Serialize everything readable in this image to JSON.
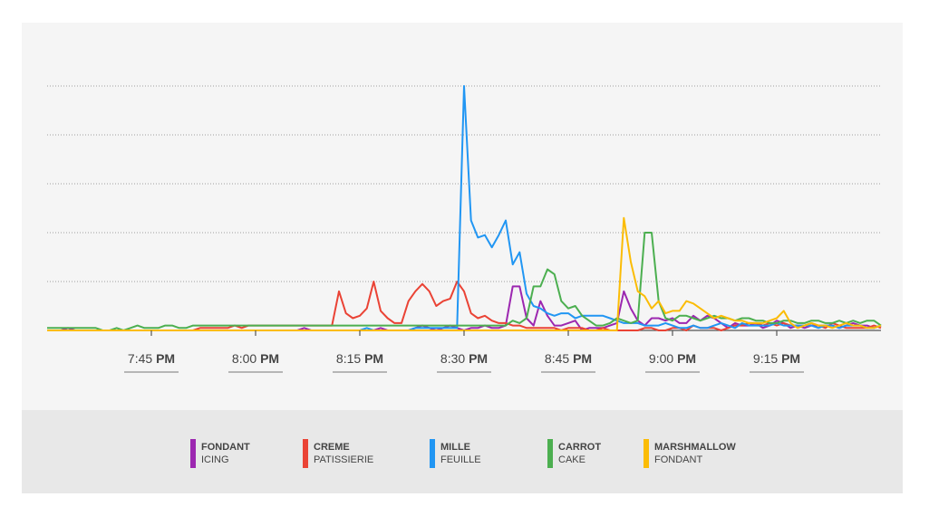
{
  "chart_data": {
    "type": "line",
    "title": "",
    "xlabel": "",
    "ylabel": "",
    "grid": true,
    "y_gridlines": 5,
    "ylim": [
      0,
      100
    ],
    "x_ticks": [
      {
        "time": "7:45",
        "ampm": "PM"
      },
      {
        "time": "8:00",
        "ampm": "PM"
      },
      {
        "time": "8:15",
        "ampm": "PM"
      },
      {
        "time": "8:30",
        "ampm": "PM"
      },
      {
        "time": "8:45",
        "ampm": "PM"
      },
      {
        "time": "9:00",
        "ampm": "PM"
      },
      {
        "time": "9:15",
        "ampm": "PM"
      }
    ],
    "x_start_minutes": 1170,
    "x_end_minutes": 1290,
    "step_minutes": 1,
    "series": [
      {
        "name": "FONDANT",
        "sub": "ICING",
        "color": "#9C27B0",
        "values": [
          0,
          0,
          0,
          1,
          0,
          0,
          0,
          0,
          0,
          0,
          0,
          0,
          0,
          0,
          0,
          0,
          0,
          0,
          0,
          0,
          0,
          0,
          0,
          0,
          0,
          0,
          0,
          0,
          0,
          0,
          0,
          0,
          0,
          0,
          0,
          0,
          0,
          1,
          0,
          0,
          0,
          0,
          0,
          0,
          0,
          0,
          0,
          0,
          1,
          0,
          0,
          0,
          0,
          1,
          2,
          1,
          0,
          1,
          2,
          1,
          0,
          1,
          1,
          2,
          1,
          1,
          2,
          18,
          18,
          5,
          2,
          12,
          6,
          2,
          2,
          3,
          4,
          0,
          1,
          1,
          1,
          2,
          3,
          16,
          9,
          4,
          2,
          5,
          5,
          4,
          5,
          3,
          3,
          6,
          4,
          6,
          5,
          3,
          1,
          3,
          2,
          2,
          3,
          1,
          2,
          4,
          3,
          1,
          2,
          1,
          2,
          2,
          2,
          2,
          1,
          2,
          3,
          2,
          2,
          1,
          2
        ]
      },
      {
        "name": "CREME",
        "sub": "PATISSIERIE",
        "color": "#EA4335",
        "values": [
          0,
          0,
          0,
          0,
          0,
          0,
          0,
          0,
          0,
          0,
          0,
          0,
          0,
          0,
          0,
          0,
          0,
          0,
          0,
          0,
          0,
          0,
          1,
          1,
          1,
          1,
          1,
          2,
          1,
          2,
          2,
          2,
          2,
          2,
          2,
          2,
          2,
          2,
          2,
          2,
          2,
          2,
          16,
          7,
          5,
          6,
          9,
          20,
          8,
          5,
          3,
          3,
          12,
          16,
          19,
          16,
          10,
          12,
          13,
          20,
          16,
          7,
          5,
          6,
          4,
          3,
          3,
          2,
          2,
          1,
          1,
          1,
          1,
          1,
          0,
          1,
          1,
          1,
          0,
          0,
          1,
          0,
          0,
          0,
          0,
          0,
          1,
          1,
          0,
          0,
          1,
          1,
          0,
          2,
          1,
          1,
          1,
          0,
          1,
          2,
          2,
          3,
          3,
          2,
          3,
          2,
          3,
          2,
          2,
          2,
          3,
          2,
          1,
          3,
          2,
          1,
          1,
          1,
          1,
          2,
          1
        ]
      },
      {
        "name": "MILLE",
        "sub": "FEUILLE",
        "color": "#2196F3",
        "values": [
          0,
          0,
          0,
          0,
          0,
          0,
          0,
          0,
          0,
          0,
          0,
          0,
          0,
          0,
          0,
          0,
          0,
          0,
          0,
          0,
          0,
          0,
          0,
          0,
          0,
          0,
          0,
          0,
          0,
          0,
          0,
          0,
          0,
          0,
          0,
          0,
          0,
          0,
          0,
          0,
          0,
          0,
          0,
          0,
          0,
          0,
          1,
          0,
          0,
          0,
          0,
          0,
          0,
          1,
          1,
          1,
          1,
          1,
          1,
          1,
          100,
          45,
          38,
          39,
          34,
          39,
          45,
          27,
          32,
          15,
          10,
          9,
          7,
          6,
          7,
          7,
          5,
          6,
          6,
          6,
          6,
          5,
          4,
          3,
          3,
          3,
          2,
          2,
          2,
          3,
          2,
          1,
          1,
          2,
          1,
          1,
          2,
          3,
          2,
          1,
          3,
          2,
          2,
          2,
          2,
          3,
          2,
          2,
          2,
          2,
          2,
          1,
          2,
          2,
          1,
          2,
          2,
          2,
          1,
          1,
          2
        ]
      },
      {
        "name": "CARROT",
        "sub": "CAKE",
        "color": "#4CAF50",
        "values": [
          1,
          1,
          1,
          1,
          1,
          1,
          1,
          1,
          0,
          0,
          1,
          0,
          1,
          2,
          1,
          1,
          1,
          2,
          2,
          1,
          1,
          2,
          2,
          2,
          2,
          2,
          2,
          2,
          2,
          2,
          2,
          2,
          2,
          2,
          2,
          2,
          2,
          2,
          2,
          2,
          2,
          2,
          2,
          2,
          2,
          2,
          2,
          2,
          2,
          2,
          2,
          2,
          2,
          2,
          2,
          2,
          2,
          2,
          2,
          2,
          2,
          2,
          2,
          2,
          2,
          2,
          2,
          4,
          3,
          5,
          18,
          18,
          25,
          23,
          12,
          9,
          10,
          6,
          4,
          2,
          2,
          3,
          5,
          4,
          3,
          4,
          40,
          40,
          12,
          5,
          4,
          6,
          6,
          5,
          4,
          5,
          6,
          5,
          5,
          4,
          5,
          5,
          4,
          4,
          3,
          3,
          4,
          4,
          3,
          3,
          4,
          4,
          3,
          3,
          4,
          3,
          4,
          3,
          4,
          4,
          2
        ]
      },
      {
        "name": "MARSHMALLOW",
        "sub": "FONDANT",
        "color": "#FBBC05",
        "values": [
          0,
          0,
          0,
          0,
          0,
          0,
          0,
          0,
          0,
          0,
          0,
          0,
          0,
          0,
          0,
          0,
          0,
          0,
          0,
          0,
          0,
          0,
          0,
          0,
          0,
          0,
          0,
          0,
          0,
          0,
          0,
          0,
          0,
          0,
          0,
          0,
          0,
          0,
          0,
          0,
          0,
          0,
          0,
          0,
          0,
          0,
          0,
          0,
          0,
          0,
          0,
          0,
          0,
          0,
          0,
          0,
          0,
          0,
          0,
          0,
          0,
          0,
          0,
          0,
          0,
          0,
          0,
          0,
          0,
          0,
          0,
          0,
          0,
          0,
          0,
          0,
          0,
          0,
          0,
          0,
          0,
          0,
          0,
          46,
          28,
          16,
          14,
          9,
          12,
          7,
          8,
          8,
          12,
          11,
          9,
          7,
          5,
          6,
          5,
          4,
          4,
          3,
          3,
          3,
          4,
          5,
          8,
          3,
          1,
          2,
          3,
          2,
          2,
          1,
          2,
          3,
          2,
          2,
          1,
          1,
          2
        ]
      }
    ]
  }
}
